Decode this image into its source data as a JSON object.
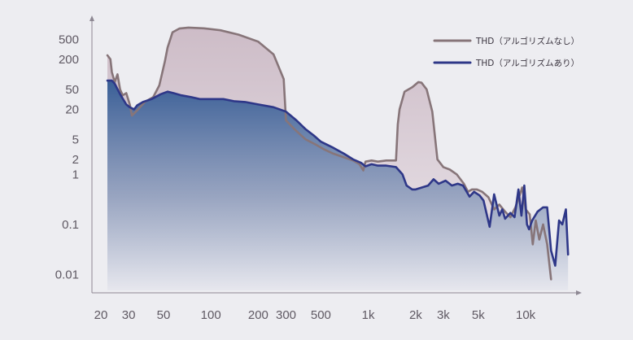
{
  "chart_data": {
    "type": "area",
    "title": "",
    "xlabel": "",
    "ylabel": "",
    "x_scale": "log",
    "y_scale": "log",
    "xlim": [
      20,
      19000
    ],
    "ylim": [
      0.005,
      1500
    ],
    "grid": false,
    "legend_position": "top-right",
    "x_ticks": [
      {
        "value": 20,
        "label": "20"
      },
      {
        "value": 30,
        "label": "30"
      },
      {
        "value": 50,
        "label": "50"
      },
      {
        "value": 100,
        "label": "100"
      },
      {
        "value": 200,
        "label": "200"
      },
      {
        "value": 300,
        "label": "300"
      },
      {
        "value": 500,
        "label": "500"
      },
      {
        "value": 1000,
        "label": "1k"
      },
      {
        "value": 2000,
        "label": "2k"
      },
      {
        "value": 3000,
        "label": "3k"
      },
      {
        "value": 5000,
        "label": "5k"
      },
      {
        "value": 10000,
        "label": "10k"
      }
    ],
    "y_ticks": [
      {
        "value": 0.01,
        "label": "0.01"
      },
      {
        "value": 0.1,
        "label": "0.1"
      },
      {
        "value": 1,
        "label": "1"
      },
      {
        "value": 2,
        "label": "2"
      },
      {
        "value": 5,
        "label": "5"
      },
      {
        "value": 20,
        "label": "20"
      },
      {
        "value": 50,
        "label": "50"
      },
      {
        "value": 200,
        "label": "200"
      },
      {
        "value": 500,
        "label": "500"
      }
    ],
    "series": [
      {
        "name": "THD（アルゴリズムなし）",
        "color": "#877579",
        "fill_color": "#d8ccd3",
        "points": [
          [
            22,
            240
          ],
          [
            23,
            200
          ],
          [
            23.5,
            110
          ],
          [
            24.5,
            70
          ],
          [
            25.5,
            100
          ],
          [
            26.5,
            50
          ],
          [
            27.5,
            38
          ],
          [
            29,
            42
          ],
          [
            30.5,
            25
          ],
          [
            31.5,
            15
          ],
          [
            34,
            19
          ],
          [
            38,
            28
          ],
          [
            43,
            35
          ],
          [
            47,
            60
          ],
          [
            51,
            180
          ],
          [
            53,
            340
          ],
          [
            57,
            690
          ],
          [
            63,
            820
          ],
          [
            72,
            860
          ],
          [
            90,
            830
          ],
          [
            115,
            760
          ],
          [
            150,
            620
          ],
          [
            200,
            450
          ],
          [
            250,
            250
          ],
          [
            290,
            80
          ],
          [
            300,
            12
          ],
          [
            340,
            8
          ],
          [
            400,
            5
          ],
          [
            460,
            4
          ],
          [
            520,
            3.2
          ],
          [
            600,
            2.6
          ],
          [
            700,
            2.2
          ],
          [
            800,
            1.9
          ],
          [
            880,
            1.6
          ],
          [
            930,
            1.2
          ],
          [
            960,
            1.8
          ],
          [
            1050,
            1.9
          ],
          [
            1150,
            1.8
          ],
          [
            1300,
            1.9
          ],
          [
            1500,
            1.9
          ],
          [
            1540,
            10
          ],
          [
            1580,
            20
          ],
          [
            1700,
            45
          ],
          [
            1900,
            55
          ],
          [
            2080,
            70
          ],
          [
            2180,
            68
          ],
          [
            2350,
            50
          ],
          [
            2550,
            18
          ],
          [
            2750,
            2
          ],
          [
            3000,
            1.4
          ],
          [
            3300,
            1.25
          ],
          [
            3650,
            1.0
          ],
          [
            4050,
            0.65
          ],
          [
            4300,
            0.45
          ],
          [
            4560,
            0.5
          ],
          [
            4900,
            0.5
          ],
          [
            5300,
            0.45
          ],
          [
            5800,
            0.35
          ],
          [
            6300,
            0.2
          ],
          [
            6800,
            0.25
          ],
          [
            7400,
            0.18
          ],
          [
            8000,
            0.14
          ],
          [
            8600,
            0.22
          ],
          [
            9200,
            0.4
          ],
          [
            9500,
            0.55
          ],
          [
            10000,
            0.2
          ],
          [
            10600,
            0.16
          ],
          [
            11100,
            0.04
          ],
          [
            11600,
            0.12
          ],
          [
            12200,
            0.05
          ],
          [
            12900,
            0.1
          ],
          [
            13700,
            0.04
          ],
          [
            14500,
            0.008
          ]
        ]
      },
      {
        "name": "THD（アルゴリズムあり）",
        "color": "#2e3788",
        "fill_color": "#3b5f96",
        "points": [
          [
            22,
            75
          ],
          [
            23.5,
            75
          ],
          [
            24.5,
            65
          ],
          [
            26.5,
            40
          ],
          [
            29,
            25
          ],
          [
            30.5,
            22
          ],
          [
            32.5,
            20
          ],
          [
            34,
            24
          ],
          [
            37,
            28
          ],
          [
            42,
            32
          ],
          [
            48,
            40
          ],
          [
            53,
            45
          ],
          [
            58,
            42
          ],
          [
            65,
            38
          ],
          [
            75,
            35
          ],
          [
            85,
            32
          ],
          [
            100,
            32
          ],
          [
            120,
            32
          ],
          [
            140,
            29
          ],
          [
            165,
            28
          ],
          [
            200,
            25
          ],
          [
            250,
            22
          ],
          [
            300,
            18
          ],
          [
            350,
            12
          ],
          [
            400,
            8
          ],
          [
            450,
            6
          ],
          [
            500,
            4.5
          ],
          [
            600,
            3.4
          ],
          [
            700,
            2.6
          ],
          [
            800,
            2.0
          ],
          [
            900,
            1.7
          ],
          [
            960,
            1.45
          ],
          [
            1050,
            1.6
          ],
          [
            1150,
            1.5
          ],
          [
            1300,
            1.5
          ],
          [
            1500,
            1.4
          ],
          [
            1650,
            1.0
          ],
          [
            1750,
            0.6
          ],
          [
            1900,
            0.5
          ],
          [
            2000,
            0.5
          ],
          [
            2200,
            0.55
          ],
          [
            2400,
            0.6
          ],
          [
            2600,
            0.8
          ],
          [
            2800,
            0.65
          ],
          [
            3100,
            0.75
          ],
          [
            3400,
            0.6
          ],
          [
            3700,
            0.65
          ],
          [
            4000,
            0.6
          ],
          [
            4400,
            0.36
          ],
          [
            4700,
            0.45
          ],
          [
            5100,
            0.38
          ],
          [
            5400,
            0.3
          ],
          [
            5900,
            0.09
          ],
          [
            6300,
            0.4
          ],
          [
            6800,
            0.15
          ],
          [
            7100,
            0.2
          ],
          [
            7400,
            0.13
          ],
          [
            8000,
            0.17
          ],
          [
            8500,
            0.14
          ],
          [
            9000,
            0.5
          ],
          [
            9400,
            0.15
          ],
          [
            9800,
            0.6
          ],
          [
            10200,
            0.1
          ],
          [
            10500,
            0.08
          ],
          [
            11000,
            0.12
          ],
          [
            11900,
            0.18
          ],
          [
            12900,
            0.22
          ],
          [
            13700,
            0.22
          ],
          [
            14500,
            0.03
          ],
          [
            15400,
            0.015
          ],
          [
            16300,
            0.12
          ],
          [
            17100,
            0.1
          ],
          [
            18000,
            0.2
          ],
          [
            18600,
            0.025
          ]
        ]
      }
    ]
  }
}
